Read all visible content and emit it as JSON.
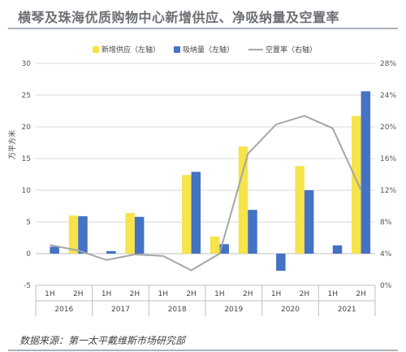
{
  "page": {
    "title": "横琴及珠海优质购物中心新增供应、净吸纳量及空置率",
    "source": "数据来源：第一太平戴维斯市场研究部"
  },
  "chart_data": {
    "type": "bar",
    "categories": [
      "1H",
      "2H",
      "1H",
      "2H",
      "1H",
      "2H",
      "1H",
      "2H",
      "1H",
      "2H",
      "1H",
      "2H"
    ],
    "years": [
      "2016",
      "2017",
      "2018",
      "2019",
      "2020",
      "2021"
    ],
    "ylabel": "万平方米",
    "ylim": [
      -5,
      30
    ],
    "y_ticks": [
      "-5",
      "0",
      "5",
      "10",
      "15",
      "20",
      "25",
      "30"
    ],
    "y2lim": [
      0,
      28
    ],
    "y2_ticks": [
      "0%",
      "4%",
      "8%",
      "12%",
      "16%",
      "20%",
      "24%",
      "28%"
    ],
    "legend_position": "top",
    "grid": true,
    "series": [
      {
        "name": "新增供应（左轴）",
        "type": "bar",
        "axis": "left",
        "color": "#f7e34a",
        "values": [
          0,
          6.0,
          0,
          6.4,
          0,
          12.4,
          2.7,
          16.9,
          0,
          13.8,
          0,
          21.7
        ]
      },
      {
        "name": "吸纳量（左轴）",
        "type": "bar",
        "axis": "left",
        "color": "#4472c4",
        "values": [
          1.1,
          5.9,
          0.4,
          5.8,
          0,
          12.9,
          1.5,
          6.9,
          -2.7,
          10.0,
          1.3,
          25.6
        ]
      },
      {
        "name": "空置率（右轴）",
        "type": "line",
        "axis": "right",
        "color": "#a6a6a6",
        "unit": "%",
        "values": [
          5.1,
          4.4,
          3.2,
          3.9,
          3.7,
          1.9,
          4.0,
          16.6,
          20.3,
          21.4,
          19.8,
          12.0
        ]
      }
    ]
  }
}
